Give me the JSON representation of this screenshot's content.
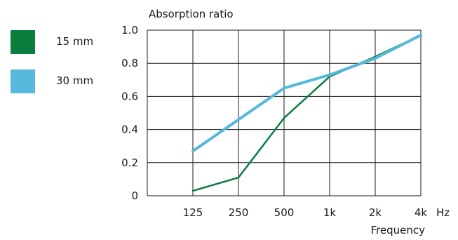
{
  "chart_data": {
    "type": "line",
    "ylabel": "Absorption ratio",
    "xlabel": "Frequency",
    "x_unit": "Hz",
    "categories": [
      "125",
      "250",
      "500",
      "1k",
      "2k",
      "4k"
    ],
    "y_ticks": [
      "0",
      "0.2",
      "0.4",
      "0.6",
      "0.8",
      "1.0"
    ],
    "ylim": [
      0,
      1.0
    ],
    "grid": true,
    "legend_position": "left",
    "series": [
      {
        "name": "15 mm",
        "color": "#0b7d3e",
        "values": [
          0.03,
          0.11,
          0.47,
          0.72,
          0.84,
          0.97
        ]
      },
      {
        "name": "30 mm",
        "color": "#56b8dc",
        "values": [
          0.27,
          0.46,
          0.65,
          0.73,
          0.83,
          0.97
        ]
      }
    ]
  }
}
